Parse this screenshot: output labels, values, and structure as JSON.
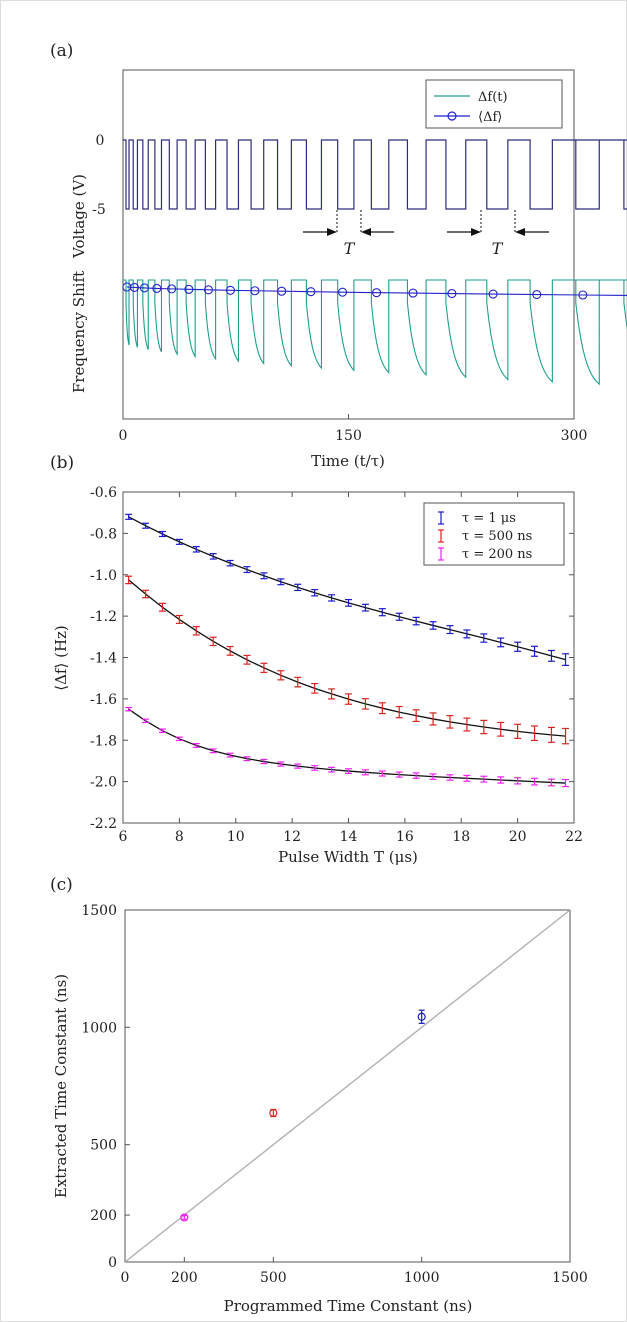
{
  "panels": {
    "a": {
      "label": "(a)",
      "xlabel": "Time (t/τ)",
      "ylabel_top": "Voltage (V)",
      "ylabel_bottom": "Frequency Shift",
      "xticks": [
        "0",
        "150",
        "300"
      ],
      "yticks_voltage": [
        "0",
        "-5"
      ],
      "annotation_T": "T",
      "legend": [
        "Δf(t)",
        "⟨Δf⟩"
      ]
    },
    "b": {
      "label": "(b)",
      "xlabel": "Pulse Width T (μs)",
      "ylabel": "⟨Δf⟩ (Hz)",
      "xticks": [
        "6",
        "8",
        "10",
        "12",
        "14",
        "16",
        "18",
        "20",
        "22"
      ],
      "yticks": [
        "-0.6",
        "-0.8",
        "-1.0",
        "-1.2",
        "-1.4",
        "-1.6",
        "-1.8",
        "-2.0",
        "-2.2"
      ],
      "legend": [
        "τ = 1 μs",
        "τ = 500 ns",
        "τ = 200 ns"
      ]
    },
    "c": {
      "label": "(c)",
      "xlabel": "Programmed Time Constant (ns)",
      "ylabel": "Extracted Time Constant (ns)",
      "xticks": [
        "0",
        "200",
        "500",
        "1000",
        "1500"
      ],
      "yticks": [
        "0",
        "200",
        "500",
        "1000",
        "1500"
      ]
    }
  },
  "colors": {
    "voltage": "#2e2d78",
    "freq": "#1f9e8c",
    "avg": "#2222cc",
    "blue": "#1a1acc",
    "red": "#dd2222",
    "magenta": "#ee22ee",
    "identity": "#b0b0b0",
    "fit": "#111111"
  },
  "chart_data": [
    {
      "type": "line",
      "panel": "a",
      "xlabel": "Time (t/τ)",
      "xlim": [
        0,
        300
      ],
      "series": [
        {
          "name": "Δf(t)",
          "kind": "pulsed frequency shift",
          "pulse_count": 20
        },
        {
          "name": "⟨Δf⟩",
          "kind": "cycle average",
          "marker": "circle"
        }
      ],
      "voltage_levels": [
        0,
        -5
      ],
      "voltage_pulse_widths_t": [
        2,
        2.8,
        3.6,
        4.4,
        5.2,
        6,
        6.8,
        7.6,
        8.4,
        9.2,
        10,
        10.8,
        11.6,
        12.4,
        13.2,
        14,
        14.8,
        15.6,
        16.4,
        17.2
      ]
    },
    {
      "type": "line",
      "panel": "b",
      "xlabel": "Pulse Width T (μs)",
      "ylabel": "⟨Δf⟩ (Hz)",
      "xlim": [
        6,
        22
      ],
      "ylim": [
        -2.2,
        -0.6
      ],
      "x": [
        6.2,
        6.8,
        7.4,
        8.0,
        8.6,
        9.2,
        9.8,
        10.4,
        11.0,
        11.6,
        12.2,
        12.8,
        13.4,
        14.0,
        14.6,
        15.2,
        15.8,
        16.4,
        17.0,
        17.6,
        18.2,
        18.8,
        19.4,
        20.0,
        20.6,
        21.2,
        21.7
      ],
      "series": [
        {
          "name": "τ = 1 μs",
          "color": "#1a1acc",
          "values": [
            -0.72,
            -0.763,
            -0.803,
            -0.841,
            -0.877,
            -0.911,
            -0.944,
            -0.975,
            -1.005,
            -1.034,
            -1.061,
            -1.087,
            -1.112,
            -1.136,
            -1.159,
            -1.181,
            -1.203,
            -1.224,
            -1.245,
            -1.265,
            -1.286,
            -1.306,
            -1.327,
            -1.348,
            -1.37,
            -1.392,
            -1.41
          ],
          "error": [
            0.012,
            0.012,
            0.012,
            0.012,
            0.013,
            0.013,
            0.013,
            0.014,
            0.014,
            0.014,
            0.015,
            0.015,
            0.015,
            0.016,
            0.016,
            0.017,
            0.017,
            0.018,
            0.018,
            0.019,
            0.019,
            0.02,
            0.021,
            0.022,
            0.024,
            0.026,
            0.028
          ]
        },
        {
          "name": "τ = 500 ns",
          "color": "#dd2222",
          "values": [
            -1.025,
            -1.093,
            -1.157,
            -1.216,
            -1.271,
            -1.322,
            -1.368,
            -1.411,
            -1.45,
            -1.486,
            -1.519,
            -1.549,
            -1.576,
            -1.601,
            -1.624,
            -1.645,
            -1.664,
            -1.681,
            -1.697,
            -1.711,
            -1.724,
            -1.736,
            -1.747,
            -1.757,
            -1.766,
            -1.774,
            -1.78
          ],
          "error": [
            0.018,
            0.018,
            0.019,
            0.019,
            0.02,
            0.02,
            0.021,
            0.021,
            0.022,
            0.022,
            0.023,
            0.023,
            0.024,
            0.025,
            0.025,
            0.026,
            0.027,
            0.028,
            0.029,
            0.03,
            0.031,
            0.032,
            0.033,
            0.034,
            0.035,
            0.036,
            0.037
          ]
        },
        {
          "name": "τ = 200 ns",
          "color": "#ee22ee",
          "values": [
            -1.65,
            -1.706,
            -1.754,
            -1.793,
            -1.825,
            -1.851,
            -1.872,
            -1.889,
            -1.903,
            -1.915,
            -1.925,
            -1.934,
            -1.942,
            -1.949,
            -1.955,
            -1.961,
            -1.966,
            -1.971,
            -1.976,
            -1.98,
            -1.984,
            -1.988,
            -1.992,
            -1.996,
            -2.0,
            -2.004,
            -2.007
          ],
          "error": [
            0.008,
            0.008,
            0.008,
            0.008,
            0.009,
            0.009,
            0.009,
            0.009,
            0.01,
            0.01,
            0.01,
            0.011,
            0.011,
            0.011,
            0.012,
            0.012,
            0.012,
            0.013,
            0.013,
            0.013,
            0.014,
            0.014,
            0.015,
            0.015,
            0.016,
            0.016,
            0.017
          ]
        }
      ],
      "fit": "black curve through each series",
      "legend": "top-right"
    },
    {
      "type": "scatter",
      "panel": "c",
      "xlabel": "Programmed Time Constant (ns)",
      "ylabel": "Extracted Time Constant (ns)",
      "xlim": [
        0,
        1500
      ],
      "ylim": [
        0,
        1500
      ],
      "points": [
        {
          "x": 200,
          "y": 190,
          "err": 8,
          "color": "#ee22ee"
        },
        {
          "x": 500,
          "y": 635,
          "err": 15,
          "color": "#dd2222"
        },
        {
          "x": 1000,
          "y": 1045,
          "err": 28,
          "color": "#1a1acc"
        }
      ],
      "reference_line": "y = x"
    }
  ]
}
